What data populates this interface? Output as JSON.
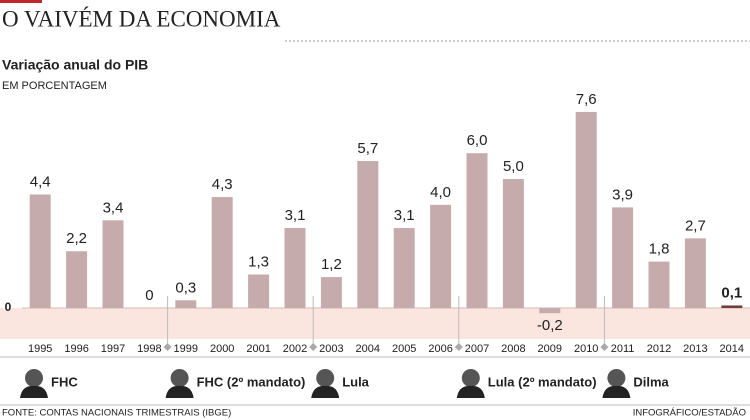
{
  "chart_data": {
    "type": "bar",
    "title": "O VAIVÉM DA ECONOMIA",
    "subtitle": "Variação anual do PIB",
    "unit_label": "EM PORCENTAGEM",
    "categories": [
      "1995",
      "1996",
      "1997",
      "1998",
      "1999",
      "2000",
      "2001",
      "2002",
      "2003",
      "2004",
      "2005",
      "2006",
      "2007",
      "2008",
      "2009",
      "2010",
      "2011",
      "2012",
      "2013",
      "2014"
    ],
    "values": [
      4.4,
      2.2,
      3.4,
      0,
      0.3,
      4.3,
      1.3,
      3.1,
      1.2,
      5.7,
      3.1,
      4.0,
      6.0,
      5.0,
      -0.2,
      7.6,
      3.9,
      1.8,
      2.7,
      0.1
    ],
    "value_labels": [
      "4,4",
      "2,2",
      "3,4",
      "0",
      "0,3",
      "4,3",
      "1,3",
      "3,1",
      "1,2",
      "5,7",
      "3,1",
      "4,0",
      "6,0",
      "5,0",
      "-0,2",
      "7,6",
      "3,9",
      "1,8",
      "2,7",
      "0,1"
    ],
    "colors": [
      "#c6abac",
      "#c6abac",
      "#c6abac",
      "#c6abac",
      "#c6abac",
      "#c6abac",
      "#c6abac",
      "#c6abac",
      "#c6abac",
      "#c6abac",
      "#c6abac",
      "#c6abac",
      "#c6abac",
      "#c6abac",
      "#c6abac",
      "#c6abac",
      "#c6abac",
      "#c6abac",
      "#c6abac",
      "#6e3d3e"
    ],
    "ylim": [
      -1.2,
      8
    ],
    "yticks": [
      0
    ],
    "groups": [
      {
        "label": "FHC"
      },
      {
        "label": "FHC (2º mandato)"
      },
      {
        "label": "Lula"
      },
      {
        "label": "Lula (2º mandato)"
      },
      {
        "label": "Dilma"
      }
    ],
    "source": "FONTE: CONTAS NACIONAIS TRIMESTRAIS (IBGE)",
    "credit": "INFOGRÁFICO/ESTADÃO"
  }
}
